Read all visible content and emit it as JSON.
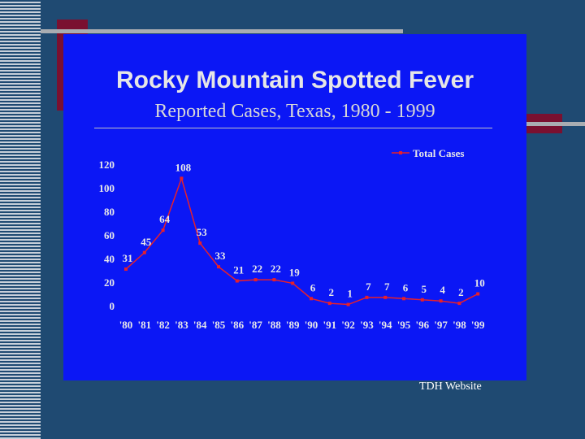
{
  "slide": {
    "title": "Rocky Mountain Spotted Fever",
    "subtitle": "Reported Cases, Texas, 1980 - 1999",
    "source": "TDH Website"
  },
  "colors": {
    "background": "#1f4a72",
    "panel": "#0b17f5",
    "accent_red": "#7a1030",
    "series_line": "#e8202a"
  },
  "chart_data": {
    "type": "line",
    "title": "",
    "xlabel": "",
    "ylabel": "",
    "categories": [
      "'80",
      "'81",
      "'82",
      "'83",
      "'84",
      "'85",
      "'86",
      "'87",
      "'88",
      "'89",
      "'90",
      "'91",
      "'92",
      "'93",
      "'94",
      "'95",
      "'96",
      "'97",
      "'98",
      "'99"
    ],
    "series": [
      {
        "name": "Total Cases",
        "values": [
          31,
          45,
          64,
          108,
          53,
          33,
          21,
          22,
          22,
          19,
          6,
          2,
          1,
          7,
          7,
          6,
          5,
          4,
          2,
          10
        ]
      }
    ],
    "ylim": [
      0,
      120
    ],
    "yticks": [
      "0",
      "20",
      "40",
      "60",
      "80",
      "100",
      "120"
    ],
    "grid": false,
    "legend": "top-right"
  }
}
